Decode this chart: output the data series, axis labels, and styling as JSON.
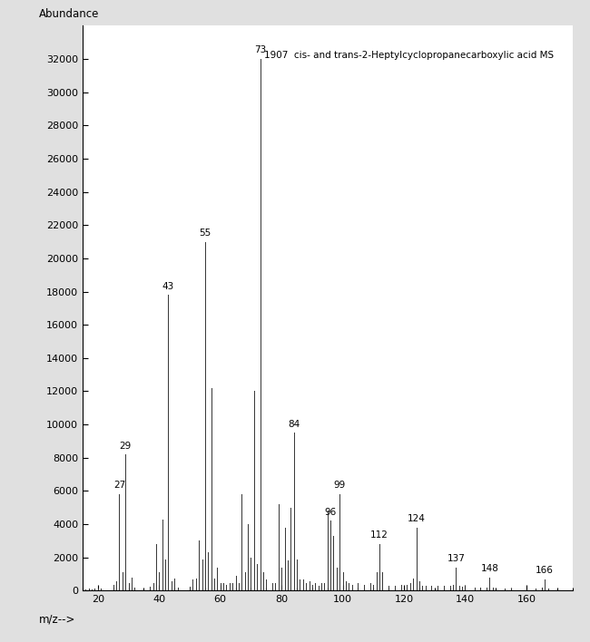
{
  "title": "1907  cis- and trans-2-Heptylcyclopropanecarboxylic acid MS",
  "xlabel": "m/z-->",
  "ylabel": "Abundance",
  "xlim": [
    15,
    175
  ],
  "ylim": [
    0,
    34000
  ],
  "xticks": [
    20,
    40,
    60,
    80,
    100,
    120,
    140,
    160
  ],
  "yticks": [
    0,
    2000,
    4000,
    6000,
    8000,
    10000,
    12000,
    14000,
    16000,
    18000,
    20000,
    22000,
    24000,
    26000,
    28000,
    30000,
    32000
  ],
  "background_color": "#ffffff",
  "fig_background": "#e0e0e0",
  "peaks": [
    [
      15,
      80
    ],
    [
      16,
      100
    ],
    [
      17,
      150
    ],
    [
      18,
      100
    ],
    [
      19,
      150
    ],
    [
      20,
      150
    ],
    [
      21,
      120
    ],
    [
      25,
      350
    ],
    [
      26,
      550
    ],
    [
      27,
      5800
    ],
    [
      28,
      1100
    ],
    [
      29,
      8200
    ],
    [
      30,
      450
    ],
    [
      31,
      800
    ],
    [
      32,
      180
    ],
    [
      37,
      250
    ],
    [
      38,
      450
    ],
    [
      39,
      2800
    ],
    [
      40,
      1100
    ],
    [
      41,
      4300
    ],
    [
      42,
      1900
    ],
    [
      43,
      17800
    ],
    [
      44,
      550
    ],
    [
      45,
      750
    ],
    [
      46,
      180
    ],
    [
      50,
      250
    ],
    [
      51,
      650
    ],
    [
      52,
      750
    ],
    [
      53,
      3000
    ],
    [
      54,
      1900
    ],
    [
      55,
      21000
    ],
    [
      56,
      2300
    ],
    [
      57,
      12200
    ],
    [
      58,
      750
    ],
    [
      59,
      1400
    ],
    [
      60,
      450
    ],
    [
      61,
      450
    ],
    [
      62,
      350
    ],
    [
      63,
      450
    ],
    [
      64,
      450
    ],
    [
      65,
      900
    ],
    [
      66,
      450
    ],
    [
      67,
      5800
    ],
    [
      68,
      1100
    ],
    [
      69,
      4000
    ],
    [
      70,
      2000
    ],
    [
      71,
      12000
    ],
    [
      72,
      1600
    ],
    [
      73,
      32000
    ],
    [
      74,
      1100
    ],
    [
      75,
      700
    ],
    [
      77,
      450
    ],
    [
      78,
      450
    ],
    [
      79,
      5200
    ],
    [
      80,
      1400
    ],
    [
      81,
      3800
    ],
    [
      82,
      1800
    ],
    [
      83,
      5000
    ],
    [
      84,
      9500
    ],
    [
      85,
      1900
    ],
    [
      86,
      700
    ],
    [
      87,
      700
    ],
    [
      88,
      450
    ],
    [
      89,
      550
    ],
    [
      90,
      350
    ],
    [
      91,
      450
    ],
    [
      92,
      280
    ],
    [
      93,
      450
    ],
    [
      94,
      450
    ],
    [
      95,
      4800
    ],
    [
      96,
      4200
    ],
    [
      97,
      3300
    ],
    [
      98,
      1400
    ],
    [
      99,
      5800
    ],
    [
      100,
      1100
    ],
    [
      101,
      550
    ],
    [
      102,
      450
    ],
    [
      103,
      350
    ],
    [
      105,
      450
    ],
    [
      107,
      350
    ],
    [
      109,
      450
    ],
    [
      110,
      350
    ],
    [
      111,
      1100
    ],
    [
      112,
      2800
    ],
    [
      113,
      1100
    ],
    [
      115,
      300
    ],
    [
      117,
      300
    ],
    [
      119,
      350
    ],
    [
      121,
      350
    ],
    [
      122,
      450
    ],
    [
      123,
      750
    ],
    [
      124,
      3800
    ],
    [
      125,
      550
    ],
    [
      126,
      300
    ],
    [
      127,
      300
    ],
    [
      129,
      300
    ],
    [
      131,
      300
    ],
    [
      133,
      300
    ],
    [
      135,
      280
    ],
    [
      136,
      350
    ],
    [
      137,
      1400
    ],
    [
      138,
      280
    ],
    [
      139,
      250
    ],
    [
      140,
      280
    ],
    [
      143,
      200
    ],
    [
      145,
      200
    ],
    [
      147,
      180
    ],
    [
      148,
      800
    ],
    [
      149,
      200
    ],
    [
      153,
      150
    ],
    [
      155,
      150
    ],
    [
      163,
      150
    ],
    [
      165,
      180
    ],
    [
      166,
      700
    ],
    [
      167,
      150
    ]
  ],
  "labeled_peaks": [
    [
      27,
      5800,
      "27"
    ],
    [
      29,
      8200,
      "29"
    ],
    [
      43,
      17800,
      "43"
    ],
    [
      55,
      21000,
      "55"
    ],
    [
      73,
      32000,
      "73"
    ],
    [
      84,
      9500,
      "84"
    ],
    [
      96,
      4200,
      "96"
    ],
    [
      99,
      5800,
      "99"
    ],
    [
      112,
      2800,
      "112"
    ],
    [
      124,
      3800,
      "124"
    ],
    [
      137,
      1400,
      "137"
    ],
    [
      148,
      800,
      "148"
    ],
    [
      166,
      700,
      "166"
    ]
  ]
}
